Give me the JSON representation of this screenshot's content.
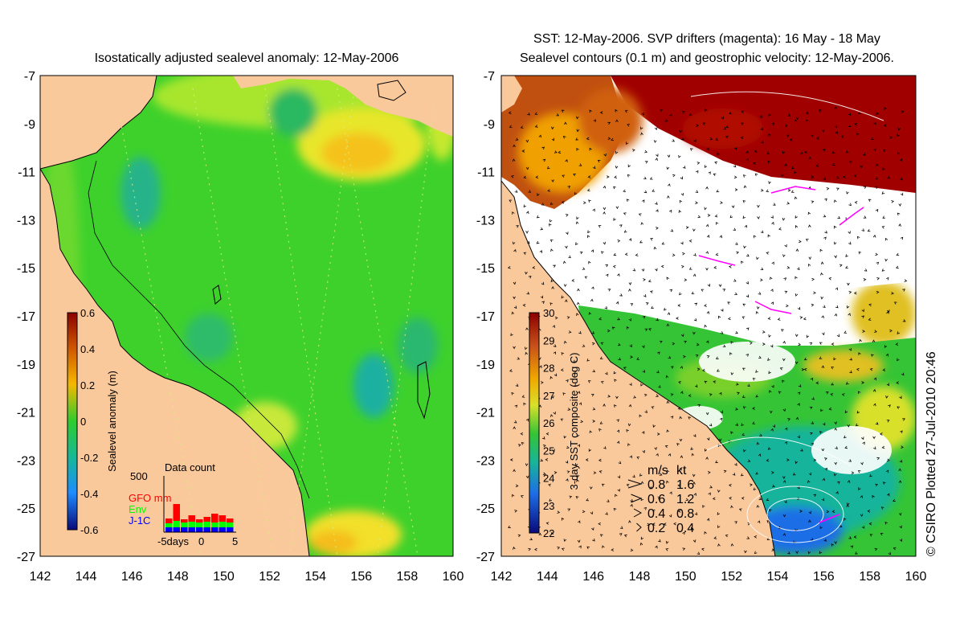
{
  "left_panel": {
    "title": "Isostatically adjusted sealevel anomaly: 12-May-2006",
    "colorbar": {
      "label": "Sealevel anomaly (m)",
      "ticks": [
        "0.6",
        "0.4",
        "0.2",
        "0",
        "-0.2",
        "-0.4",
        "-0.6"
      ]
    },
    "data_count": {
      "title": "Data count",
      "max_label": "500",
      "legend": [
        {
          "label": "GFO mm",
          "color": "#ff0000"
        },
        {
          "label": "Env",
          "color": "#00ff00"
        },
        {
          "label": "J-1C",
          "color": "#0000ff"
        }
      ],
      "x_label": "-5days",
      "x_ticks": [
        "0",
        "5"
      ]
    }
  },
  "right_panel": {
    "title_line1": "SST: 12-May-2006. SVP drifters (magenta): 16 May - 18 May",
    "title_line2": "Sealevel contours (0.1 m) and geostrophic velocity: 12-May-2006.",
    "colorbar": {
      "label": "3-day SST composite (deg C)",
      "ticks": [
        "30",
        "29",
        "28",
        "27",
        "26",
        "25",
        "24",
        "23",
        "22"
      ]
    },
    "velocity_legend": {
      "header_ms": "m/s",
      "header_kt": "kt",
      "rows": [
        {
          "ms": "0.8",
          "kt": "1.6"
        },
        {
          "ms": "0.6",
          "kt": "1.2"
        },
        {
          "ms": "0.4",
          "kt": "0.8"
        },
        {
          "ms": "0.2",
          "kt": "0.4"
        }
      ]
    }
  },
  "axes": {
    "lat_ticks": [
      "-7",
      "-9",
      "-11",
      "-13",
      "-15",
      "-17",
      "-19",
      "-21",
      "-23",
      "-25",
      "-27"
    ],
    "lon_ticks": [
      "142",
      "144",
      "146",
      "148",
      "150",
      "152",
      "154",
      "156",
      "158",
      "160"
    ]
  },
  "credit": "© CSIRO Plotted 27-Jul-2010 20:46",
  "colors": {
    "land": "#f9c89b",
    "sea_green": "#3ed12c",
    "yellow_green": "#a8e62d",
    "sst_red": "#a00000",
    "cloud": "#ffffff"
  }
}
